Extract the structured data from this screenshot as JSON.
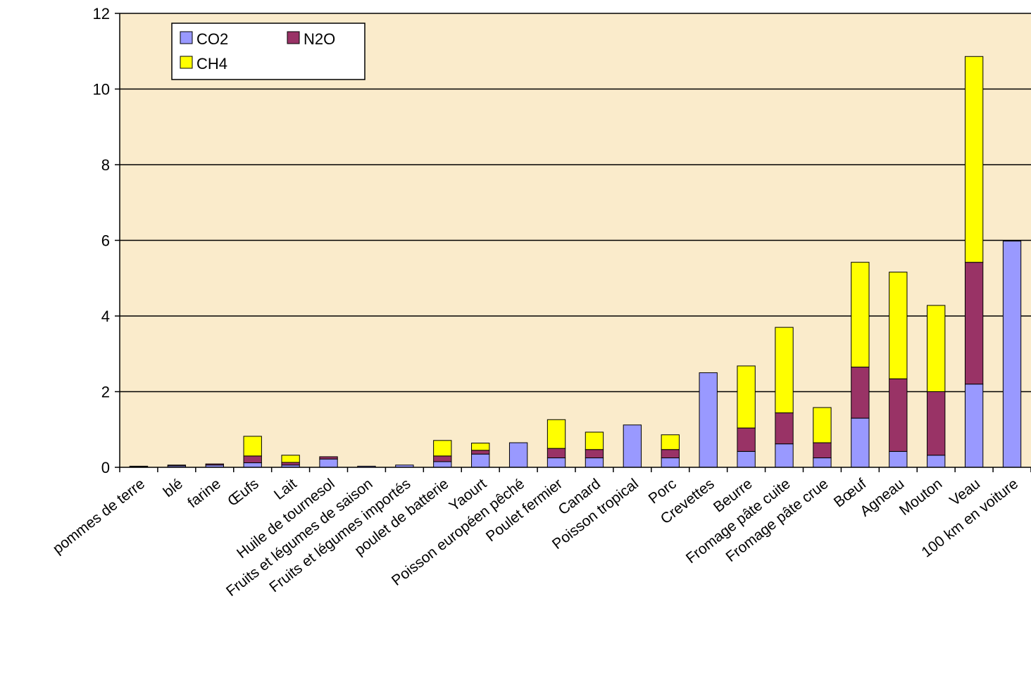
{
  "chart_data": {
    "type": "bar",
    "stacked": true,
    "title": "",
    "xlabel": "",
    "ylabel": "",
    "ylim": [
      0,
      12
    ],
    "yticks": [
      "0",
      "2",
      "4",
      "6",
      "8",
      "10",
      "12"
    ],
    "grid": true,
    "legend_position": "top-left",
    "plot_background": "#FAEBCB",
    "categories": [
      "pommes de terre",
      "blé",
      "farine",
      "Œufs",
      "Lait",
      "Huile de tournesol",
      "Fruits et légumes de saison",
      "Fruits et légumes importés",
      "poulet de batterie",
      "Yaourt",
      "Poisson européen pêché",
      "Poulet fermier",
      "Canard",
      "Poisson tropical",
      "Porc",
      "Crevettes",
      "Beurre",
      "Fromage pâte cuite",
      "Fromage pâte crue",
      "Bœuf",
      "Agneau",
      "Mouton",
      "Veau",
      "100 km en voiture"
    ],
    "series": [
      {
        "name": "CO2",
        "color": "#9999FF",
        "values": [
          0.02,
          0.04,
          0.06,
          0.12,
          0.06,
          0.22,
          0.03,
          0.06,
          0.15,
          0.35,
          0.65,
          0.25,
          0.25,
          1.12,
          0.25,
          2.5,
          0.42,
          0.62,
          0.25,
          1.3,
          0.42,
          0.32,
          2.2,
          5.98
        ]
      },
      {
        "name": "N2O",
        "color": "#993366",
        "values": [
          0.01,
          0.02,
          0.03,
          0.18,
          0.07,
          0.06,
          0.0,
          0.0,
          0.15,
          0.1,
          0.0,
          0.25,
          0.22,
          0.0,
          0.22,
          0.0,
          0.62,
          0.82,
          0.4,
          1.35,
          1.92,
          1.68,
          3.22,
          0.0
        ]
      },
      {
        "name": "CH4",
        "color": "#FFFF00",
        "values": [
          0.0,
          0.0,
          0.0,
          0.52,
          0.19,
          0.0,
          0.0,
          0.0,
          0.41,
          0.19,
          0.0,
          0.76,
          0.46,
          0.0,
          0.39,
          0.0,
          1.64,
          2.26,
          0.93,
          2.77,
          2.82,
          2.28,
          5.44,
          0.0
        ]
      }
    ],
    "legend_items": [
      {
        "name": "CO2",
        "color": "#9999FF"
      },
      {
        "name": "N2O",
        "color": "#993366"
      },
      {
        "name": "CH4",
        "color": "#FFFF00"
      }
    ]
  }
}
